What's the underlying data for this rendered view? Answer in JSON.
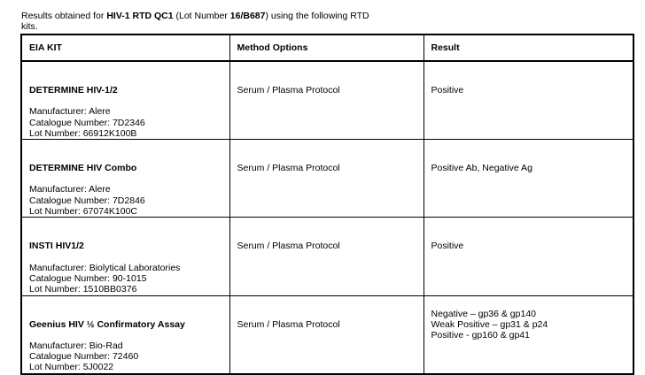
{
  "intro": {
    "p1": "Results obtained for ",
    "b1": "HIV-1 RTD QC1",
    "p2": " (Lot Number ",
    "b2": "16/B687",
    "p3": ") using the following RTD kits."
  },
  "headers": [
    "EIA KIT",
    "Method Options",
    "Result"
  ],
  "rows": [
    {
      "kit": "DETERMINE HIV-1/2",
      "manufacturer": "Manufacturer:   Alere",
      "catalogue": "Catalogue Number: 7D2346",
      "lot": "Lot Number: 66912K100B",
      "method": "Serum / Plasma Protocol",
      "result": [
        "Positive"
      ]
    },
    {
      "kit": "DETERMINE HIV Combo",
      "manufacturer": "Manufacturer:   Alere",
      "catalogue": "Catalogue Number: 7D2846",
      "lot": "Lot Number: 67074K100C",
      "method": "Serum / Plasma Protocol",
      "result": [
        "Positive Ab, Negative Ag"
      ]
    },
    {
      "kit": "INSTI HIV1/2",
      "manufacturer": "Manufacturer: Biolytical Laboratories",
      "catalogue": "Catalogue Number: 90-1015",
      "lot": "Lot Number: 1510BB0376",
      "method": "Serum / Plasma Protocol",
      "result": [
        "Positive"
      ]
    },
    {
      "kit": "Geenius HIV ½ Confirmatory Assay",
      "manufacturer": "Manufacturer: Bio-Rad",
      "catalogue": "Catalogue Number: 72460",
      "lot": "Lot Number: 5J0022",
      "method": "Serum / Plasma Protocol",
      "result": [
        "Negative – gp36 & gp140",
        "Weak Positive – gp31 & p24",
        "Positive - gp160 & gp41"
      ]
    }
  ]
}
